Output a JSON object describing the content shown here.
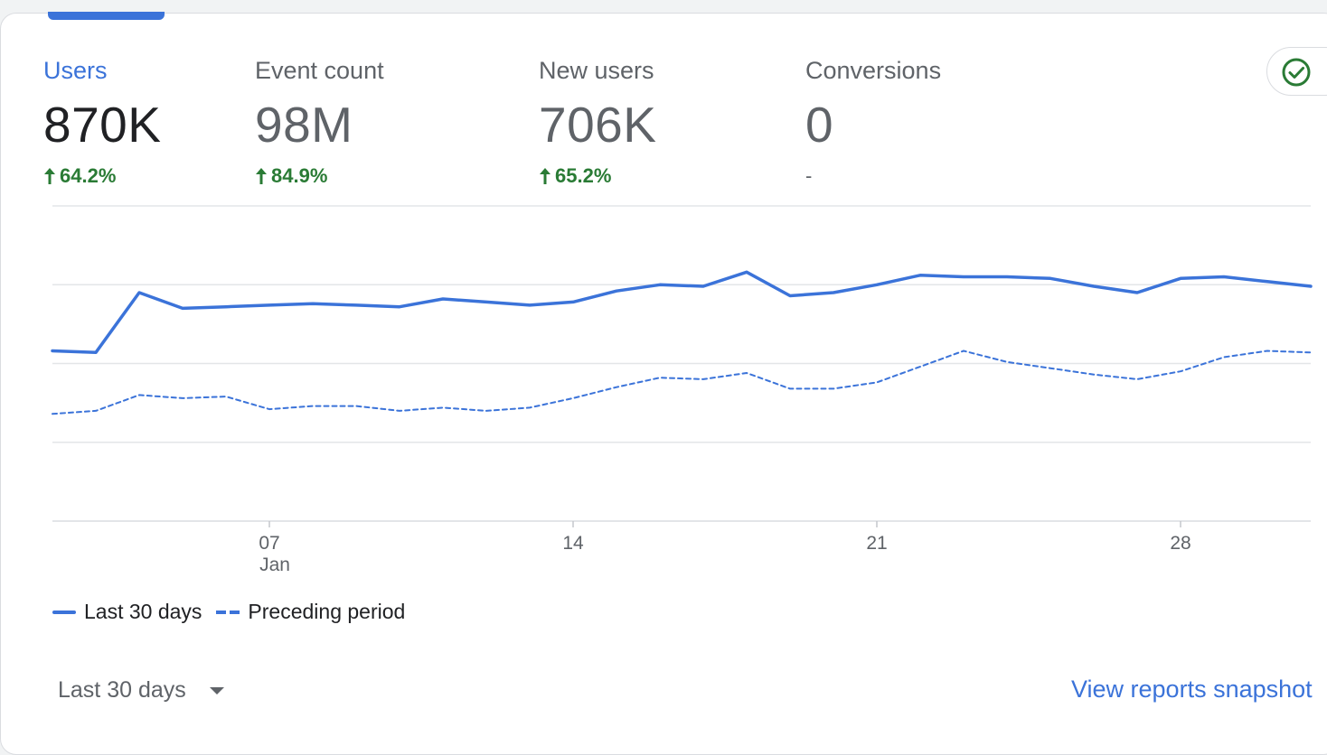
{
  "metrics": [
    {
      "label": "Users",
      "value": "870K",
      "change": "64.2%",
      "direction": "up"
    },
    {
      "label": "Event count",
      "value": "98M",
      "change": "84.9%",
      "direction": "up"
    },
    {
      "label": "New users",
      "value": "706K",
      "change": "65.2%",
      "direction": "up"
    },
    {
      "label": "Conversions",
      "value": "0",
      "change": "-",
      "direction": "none"
    }
  ],
  "colors": {
    "accent": "#3b73d9",
    "positive": "#2a7b35",
    "check": "#2a7b35"
  },
  "chart_data": {
    "type": "line",
    "xlabel": "",
    "ylabel": "",
    "grid": true,
    "legend_position": "bottom-left",
    "x_ticks": [
      {
        "day": 7,
        "label": "07",
        "sublabel": "Jan"
      },
      {
        "day": 14,
        "label": "14",
        "sublabel": ""
      },
      {
        "day": 21,
        "label": "21",
        "sublabel": ""
      },
      {
        "day": 28,
        "label": "28",
        "sublabel": ""
      }
    ],
    "x_range": [
      2,
      31
    ],
    "y_range": [
      0,
      2
    ],
    "y_gridlines": 4,
    "series": [
      {
        "name": "Last 30 days",
        "style": "solid",
        "x": [
          2,
          3,
          4,
          5,
          6,
          7,
          8,
          9,
          10,
          11,
          12,
          13,
          14,
          15,
          16,
          17,
          18,
          19,
          20,
          21,
          22,
          23,
          24,
          25,
          26,
          27,
          28,
          29,
          30,
          31
        ],
        "values": [
          1.08,
          1.07,
          1.45,
          1.35,
          1.36,
          1.37,
          1.38,
          1.37,
          1.36,
          1.41,
          1.39,
          1.37,
          1.39,
          1.46,
          1.5,
          1.49,
          1.58,
          1.43,
          1.45,
          1.5,
          1.56,
          1.55,
          1.55,
          1.54,
          1.49,
          1.45,
          1.54,
          1.55,
          1.52,
          1.49
        ]
      },
      {
        "name": "Preceding period",
        "style": "dashed",
        "x": [
          2,
          3,
          4,
          5,
          6,
          7,
          8,
          9,
          10,
          11,
          12,
          13,
          14,
          15,
          16,
          17,
          18,
          19,
          20,
          21,
          22,
          23,
          24,
          25,
          26,
          27,
          28,
          29,
          30,
          31
        ],
        "values": [
          0.68,
          0.7,
          0.8,
          0.78,
          0.79,
          0.71,
          0.73,
          0.73,
          0.7,
          0.72,
          0.7,
          0.72,
          0.78,
          0.85,
          0.91,
          0.9,
          0.94,
          0.84,
          0.84,
          0.88,
          0.98,
          1.08,
          1.01,
          0.97,
          0.93,
          0.9,
          0.95,
          1.04,
          1.08,
          1.07
        ]
      }
    ]
  },
  "legend": [
    {
      "label": "Last 30 days",
      "style": "solid"
    },
    {
      "label": "Preceding period",
      "style": "dashed"
    }
  ],
  "footer": {
    "period_label": "Last 30 days",
    "view_link": "View reports snapshot"
  },
  "icons": {
    "check": "check-circle-icon",
    "period_caret": "caret-down-icon",
    "arrow": "arrow-up-icon"
  }
}
